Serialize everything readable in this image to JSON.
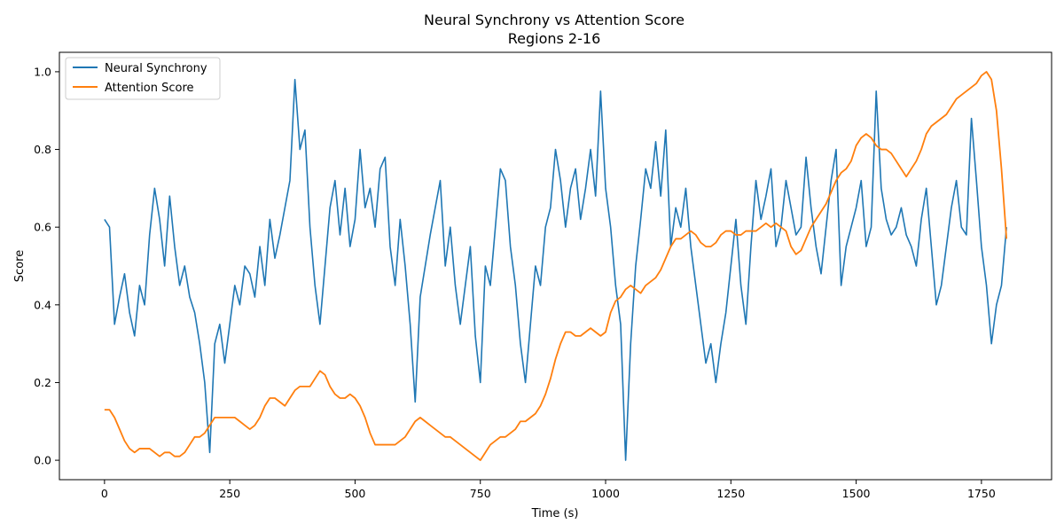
{
  "chart_data": {
    "type": "line",
    "title": "Neural Synchrony vs Attention Score",
    "subtitle": "Regions 2-16",
    "xlabel": "Time (s)",
    "ylabel": "Score",
    "xlim": [
      -90,
      1890
    ],
    "ylim": [
      -0.05,
      1.05
    ],
    "xticks": [
      0,
      250,
      500,
      750,
      1000,
      1250,
      1500,
      1750
    ],
    "yticks": [
      0.0,
      0.2,
      0.4,
      0.6,
      0.8,
      1.0
    ],
    "xtick_labels": [
      "0",
      "250",
      "500",
      "750",
      "1000",
      "1250",
      "1500",
      "1750"
    ],
    "ytick_labels": [
      "0.0",
      "0.2",
      "0.4",
      "0.6",
      "0.8",
      "1.0"
    ],
    "grid": false,
    "legend_position": "upper-left",
    "series": [
      {
        "name": "Neural Synchrony",
        "color": "#1f77b4",
        "x": [
          0,
          10,
          20,
          30,
          40,
          50,
          60,
          70,
          80,
          90,
          100,
          110,
          120,
          130,
          140,
          150,
          160,
          170,
          180,
          190,
          200,
          210,
          220,
          230,
          240,
          250,
          260,
          270,
          280,
          290,
          300,
          310,
          320,
          330,
          340,
          350,
          360,
          370,
          380,
          390,
          400,
          410,
          420,
          430,
          440,
          450,
          460,
          470,
          480,
          490,
          500,
          510,
          520,
          530,
          540,
          550,
          560,
          570,
          580,
          590,
          600,
          610,
          620,
          630,
          640,
          650,
          660,
          670,
          680,
          690,
          700,
          710,
          720,
          730,
          740,
          750,
          760,
          770,
          780,
          790,
          800,
          810,
          820,
          830,
          840,
          850,
          860,
          870,
          880,
          890,
          900,
          910,
          920,
          930,
          940,
          950,
          960,
          970,
          980,
          990,
          1000,
          1010,
          1020,
          1030,
          1040,
          1050,
          1060,
          1070,
          1080,
          1090,
          1100,
          1110,
          1120,
          1130,
          1140,
          1150,
          1160,
          1170,
          1180,
          1190,
          1200,
          1210,
          1220,
          1230,
          1240,
          1250,
          1260,
          1270,
          1280,
          1290,
          1300,
          1310,
          1320,
          1330,
          1340,
          1350,
          1360,
          1370,
          1380,
          1390,
          1400,
          1410,
          1420,
          1430,
          1440,
          1450,
          1460,
          1470,
          1480,
          1490,
          1500,
          1510,
          1520,
          1530,
          1540,
          1550,
          1560,
          1570,
          1580,
          1590,
          1600,
          1610,
          1620,
          1630,
          1640,
          1650,
          1660,
          1670,
          1680,
          1690,
          1700,
          1710,
          1720,
          1730,
          1740,
          1750,
          1760,
          1770,
          1780,
          1790,
          1800
        ],
        "values": [
          0.62,
          0.6,
          0.35,
          0.42,
          0.48,
          0.38,
          0.32,
          0.45,
          0.4,
          0.58,
          0.7,
          0.62,
          0.5,
          0.68,
          0.55,
          0.45,
          0.5,
          0.42,
          0.38,
          0.3,
          0.2,
          0.02,
          0.3,
          0.35,
          0.25,
          0.35,
          0.45,
          0.4,
          0.5,
          0.48,
          0.42,
          0.55,
          0.45,
          0.62,
          0.52,
          0.58,
          0.65,
          0.72,
          0.98,
          0.8,
          0.85,
          0.6,
          0.45,
          0.35,
          0.5,
          0.65,
          0.72,
          0.58,
          0.7,
          0.55,
          0.62,
          0.8,
          0.65,
          0.7,
          0.6,
          0.75,
          0.78,
          0.55,
          0.45,
          0.62,
          0.5,
          0.35,
          0.15,
          0.42,
          0.5,
          0.58,
          0.65,
          0.72,
          0.5,
          0.6,
          0.45,
          0.35,
          0.45,
          0.55,
          0.32,
          0.2,
          0.5,
          0.45,
          0.6,
          0.75,
          0.72,
          0.55,
          0.45,
          0.3,
          0.2,
          0.35,
          0.5,
          0.45,
          0.6,
          0.65,
          0.8,
          0.72,
          0.6,
          0.7,
          0.75,
          0.62,
          0.7,
          0.8,
          0.68,
          0.95,
          0.7,
          0.6,
          0.45,
          0.35,
          0.0,
          0.3,
          0.5,
          0.62,
          0.75,
          0.7,
          0.82,
          0.68,
          0.85,
          0.55,
          0.65,
          0.6,
          0.7,
          0.55,
          0.45,
          0.35,
          0.25,
          0.3,
          0.2,
          0.3,
          0.38,
          0.5,
          0.62,
          0.45,
          0.35,
          0.55,
          0.72,
          0.62,
          0.68,
          0.75,
          0.55,
          0.6,
          0.72,
          0.65,
          0.58,
          0.6,
          0.78,
          0.65,
          0.55,
          0.48,
          0.6,
          0.72,
          0.8,
          0.45,
          0.55,
          0.6,
          0.65,
          0.72,
          0.55,
          0.6,
          0.95,
          0.7,
          0.62,
          0.58,
          0.6,
          0.65,
          0.58,
          0.55,
          0.5,
          0.62,
          0.7,
          0.55,
          0.4,
          0.45,
          0.55,
          0.65,
          0.72,
          0.6,
          0.58,
          0.88,
          0.72,
          0.55,
          0.45,
          0.3,
          0.4,
          0.45,
          0.6
        ]
      },
      {
        "name": "Attention Score",
        "color": "#ff7f0e",
        "x": [
          0,
          10,
          20,
          30,
          40,
          50,
          60,
          70,
          80,
          90,
          100,
          110,
          120,
          130,
          140,
          150,
          160,
          170,
          180,
          190,
          200,
          210,
          220,
          230,
          240,
          250,
          260,
          270,
          280,
          290,
          300,
          310,
          320,
          330,
          340,
          350,
          360,
          370,
          380,
          390,
          400,
          410,
          420,
          430,
          440,
          450,
          460,
          470,
          480,
          490,
          500,
          510,
          520,
          530,
          540,
          550,
          560,
          570,
          580,
          590,
          600,
          610,
          620,
          630,
          640,
          650,
          660,
          670,
          680,
          690,
          700,
          710,
          720,
          730,
          740,
          750,
          760,
          770,
          780,
          790,
          800,
          810,
          820,
          830,
          840,
          850,
          860,
          870,
          880,
          890,
          900,
          910,
          920,
          930,
          940,
          950,
          960,
          970,
          980,
          990,
          1000,
          1010,
          1020,
          1030,
          1040,
          1050,
          1060,
          1070,
          1080,
          1090,
          1100,
          1110,
          1120,
          1130,
          1140,
          1150,
          1160,
          1170,
          1180,
          1190,
          1200,
          1210,
          1220,
          1230,
          1240,
          1250,
          1260,
          1270,
          1280,
          1290,
          1300,
          1310,
          1320,
          1330,
          1340,
          1350,
          1360,
          1370,
          1380,
          1390,
          1400,
          1410,
          1420,
          1430,
          1440,
          1450,
          1460,
          1470,
          1480,
          1490,
          1500,
          1510,
          1520,
          1530,
          1540,
          1550,
          1560,
          1570,
          1580,
          1590,
          1600,
          1610,
          1620,
          1630,
          1640,
          1650,
          1660,
          1670,
          1680,
          1690,
          1700,
          1710,
          1720,
          1730,
          1740,
          1750,
          1760,
          1770,
          1780,
          1790,
          1800
        ],
        "values": [
          0.13,
          0.13,
          0.11,
          0.08,
          0.05,
          0.03,
          0.02,
          0.03,
          0.03,
          0.03,
          0.02,
          0.01,
          0.02,
          0.02,
          0.01,
          0.01,
          0.02,
          0.04,
          0.06,
          0.06,
          0.07,
          0.09,
          0.11,
          0.11,
          0.11,
          0.11,
          0.11,
          0.1,
          0.09,
          0.08,
          0.09,
          0.11,
          0.14,
          0.16,
          0.16,
          0.15,
          0.14,
          0.16,
          0.18,
          0.19,
          0.19,
          0.19,
          0.21,
          0.23,
          0.22,
          0.19,
          0.17,
          0.16,
          0.16,
          0.17,
          0.16,
          0.14,
          0.11,
          0.07,
          0.04,
          0.04,
          0.04,
          0.04,
          0.04,
          0.05,
          0.06,
          0.08,
          0.1,
          0.11,
          0.1,
          0.09,
          0.08,
          0.07,
          0.06,
          0.06,
          0.05,
          0.04,
          0.03,
          0.02,
          0.01,
          0.0,
          0.02,
          0.04,
          0.05,
          0.06,
          0.06,
          0.07,
          0.08,
          0.1,
          0.1,
          0.11,
          0.12,
          0.14,
          0.17,
          0.21,
          0.26,
          0.3,
          0.33,
          0.33,
          0.32,
          0.32,
          0.33,
          0.34,
          0.33,
          0.32,
          0.33,
          0.38,
          0.41,
          0.42,
          0.44,
          0.45,
          0.44,
          0.43,
          0.45,
          0.46,
          0.47,
          0.49,
          0.52,
          0.55,
          0.57,
          0.57,
          0.58,
          0.59,
          0.58,
          0.56,
          0.55,
          0.55,
          0.56,
          0.58,
          0.59,
          0.59,
          0.58,
          0.58,
          0.59,
          0.59,
          0.59,
          0.6,
          0.61,
          0.6,
          0.61,
          0.6,
          0.59,
          0.55,
          0.53,
          0.54,
          0.57,
          0.6,
          0.62,
          0.64,
          0.66,
          0.69,
          0.72,
          0.74,
          0.75,
          0.77,
          0.81,
          0.83,
          0.84,
          0.83,
          0.81,
          0.8,
          0.8,
          0.79,
          0.77,
          0.75,
          0.73,
          0.75,
          0.77,
          0.8,
          0.84,
          0.86,
          0.87,
          0.88,
          0.89,
          0.91,
          0.93,
          0.94,
          0.95,
          0.96,
          0.97,
          0.99,
          1.0,
          0.98,
          0.9,
          0.75,
          0.57
        ]
      }
    ]
  }
}
